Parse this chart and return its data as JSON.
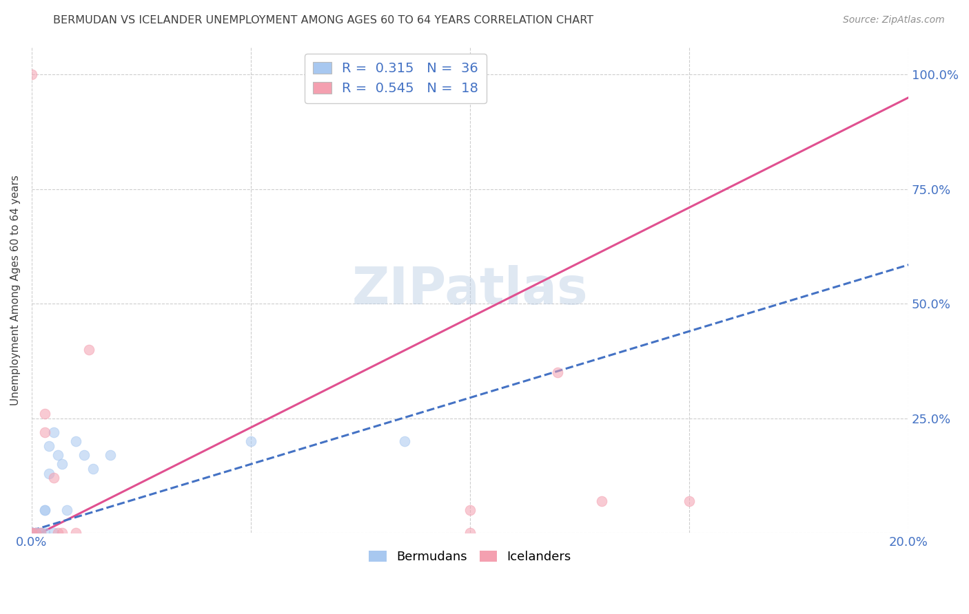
{
  "title": "BERMUDAN VS ICELANDER UNEMPLOYMENT AMONG AGES 60 TO 64 YEARS CORRELATION CHART",
  "source": "Source: ZipAtlas.com",
  "ylabel_label": "Unemployment Among Ages 60 to 64 years",
  "watermark": "ZIPatlas",
  "x_min": 0.0,
  "x_max": 0.2,
  "y_min": 0.0,
  "y_max": 1.06,
  "x_ticks": [
    0.0,
    0.05,
    0.1,
    0.15,
    0.2
  ],
  "x_tick_labels": [
    "0.0%",
    "",
    "",
    "",
    "20.0%"
  ],
  "y_ticks": [
    0.0,
    0.25,
    0.5,
    0.75,
    1.0
  ],
  "y_tick_labels": [
    "",
    "25.0%",
    "50.0%",
    "75.0%",
    "100.0%"
  ],
  "bermudans_x": [
    0.0,
    0.0,
    0.0,
    0.0,
    0.0,
    0.0,
    0.0,
    0.0,
    0.0,
    0.0,
    0.0,
    0.0,
    0.0,
    0.0,
    0.0,
    0.001,
    0.001,
    0.001,
    0.002,
    0.002,
    0.003,
    0.003,
    0.003,
    0.004,
    0.004,
    0.005,
    0.005,
    0.006,
    0.007,
    0.008,
    0.01,
    0.012,
    0.014,
    0.018,
    0.05,
    0.085
  ],
  "bermudans_y": [
    0.0,
    0.0,
    0.0,
    0.0,
    0.0,
    0.0,
    0.0,
    0.0,
    0.0,
    0.0,
    0.0,
    0.0,
    0.0,
    0.0,
    0.0,
    0.0,
    0.0,
    0.0,
    0.0,
    0.0,
    0.0,
    0.05,
    0.05,
    0.13,
    0.19,
    0.22,
    0.0,
    0.17,
    0.15,
    0.05,
    0.2,
    0.17,
    0.14,
    0.17,
    0.2,
    0.2
  ],
  "icelanders_x": [
    0.0,
    0.0,
    0.0,
    0.001,
    0.002,
    0.003,
    0.003,
    0.005,
    0.006,
    0.007,
    0.01,
    0.013,
    0.1,
    0.1,
    0.1,
    0.12,
    0.13,
    0.15
  ],
  "icelanders_y": [
    0.0,
    0.0,
    1.0,
    0.0,
    0.0,
    0.22,
    0.26,
    0.12,
    0.0,
    0.0,
    0.0,
    0.4,
    0.0,
    0.05,
    1.0,
    0.35,
    0.07,
    0.07
  ],
  "bermudans_color": "#a8c8f0",
  "icelanders_color": "#f4a0b0",
  "bermudans_R": 0.315,
  "bermudans_N": 36,
  "icelanders_R": 0.545,
  "icelanders_N": 18,
  "bermudan_line_color": "#4472c4",
  "icelander_line_color": "#e05090",
  "dot_size": 110,
  "dot_alpha": 0.55,
  "background_color": "#ffffff",
  "grid_color": "#c8c8c8",
  "title_color": "#404040",
  "ylabel_color": "#404040",
  "tick_color": "#4472c4",
  "source_color": "#909090",
  "icelander_line_slope": 4.8,
  "icelander_line_intercept": -0.01,
  "bermudan_line_slope": 2.9,
  "bermudan_line_intercept": 0.005
}
